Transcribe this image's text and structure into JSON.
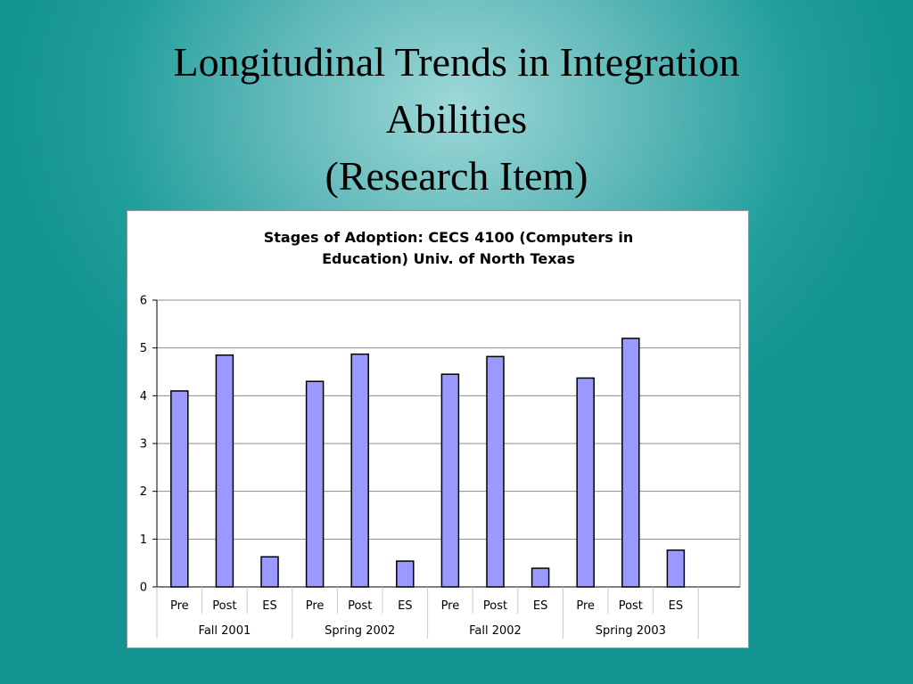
{
  "slide": {
    "title_lines": [
      "Longitudinal Trends in Integration",
      "Abilities",
      "(Research Item)"
    ]
  },
  "chart_data": {
    "type": "bar",
    "title_lines": [
      "Stages of Adoption: CECS 4100 (Computers in",
      "Education) Univ. of North Texas"
    ],
    "categories": [
      "Pre",
      "Post",
      "ES",
      "Pre",
      "Post",
      "ES",
      "Pre",
      "Post",
      "ES",
      "Pre",
      "Post",
      "ES"
    ],
    "groups": [
      "Fall 2001",
      "Spring 2002",
      "Fall 2002",
      "Spring 2003"
    ],
    "values": [
      4.1,
      4.85,
      0.63,
      4.3,
      4.87,
      0.54,
      4.45,
      4.82,
      0.39,
      4.37,
      5.2,
      0.77
    ],
    "ylim": [
      0,
      6
    ],
    "yticks": [
      0,
      1,
      2,
      3,
      4,
      5,
      6
    ],
    "grid": true,
    "colors": {
      "bar_fill": "#9999ff",
      "bar_stroke": "#000000",
      "grid": "#8c8c8c"
    },
    "xlabel": "",
    "ylabel": ""
  }
}
